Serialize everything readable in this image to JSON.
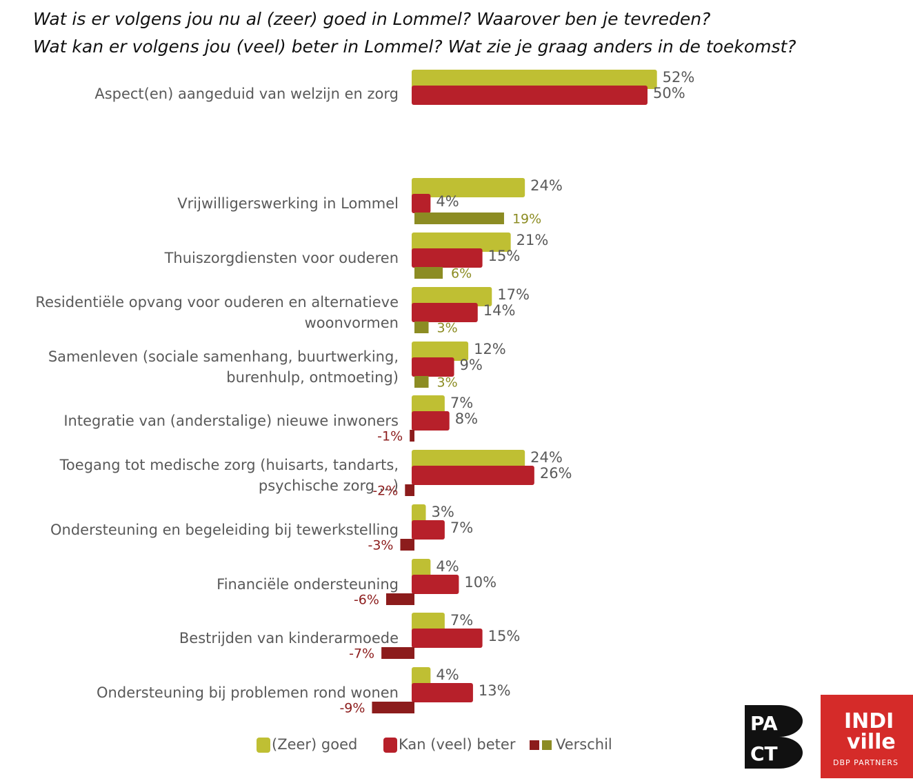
{
  "title_lines": [
    "Wat is er volgens jou nu al (zeer) goed in Lommel? Waarover ben je tevreden?",
    "Wat kan er volgens jou (veel) beter in Lommel? Wat zie je graag anders in de toekomst?"
  ],
  "chart_data": {
    "type": "bar",
    "orientation": "horizontal",
    "categories": [
      "Aspect(en) aangeduid van welzijn en zorg",
      "Vrijwilligerswerking in Lommel",
      "Thuiszorgdiensten voor ouderen",
      "Residentiële opvang voor ouderen en alternatieve woonvormen",
      "Samenleven (sociale samenhang, buurtwerking, burenhulp, ontmoeting)",
      "Integratie van (anderstalige) nieuwe inwoners",
      "Toegang tot medische zorg (huisarts, tandarts, psychische zorg ...)",
      "Ondersteuning en begeleiding bij tewerkstelling",
      "Financiële ondersteuning",
      "Bestrijden van kinderarmoede",
      "Ondersteuning bij problemen rond wonen"
    ],
    "series": [
      {
        "name": "(Zeer) goed",
        "color": "#bfbf33",
        "values": [
          52,
          24,
          21,
          17,
          12,
          7,
          24,
          3,
          4,
          7,
          4
        ]
      },
      {
        "name": "Kan (veel) beter",
        "color": "#b7202a",
        "values": [
          50,
          4,
          15,
          14,
          9,
          8,
          26,
          7,
          10,
          15,
          13
        ]
      },
      {
        "name": "Verschil",
        "values": [
          null,
          19,
          6,
          3,
          3,
          -1,
          -2,
          -3,
          -6,
          -7,
          -9
        ],
        "color_positive": "#8c8c23",
        "color_negative": "#8c1c1c"
      }
    ],
    "unit": "%",
    "legend_position": "bottom",
    "grid": false
  },
  "legend": {
    "goed": "(Zeer) goed",
    "beter": "Kan (veel) beter",
    "verschil": "Verschil",
    "colors": {
      "goed": "#bfbf33",
      "beter": "#b7202a",
      "verschil_neg": "#8c1c1c",
      "verschil_pos": "#8c8c23"
    }
  },
  "logos": {
    "pact": "PA CT",
    "indiville_name": "INDI ville",
    "indiville_sub": "DBP PARTNERS"
  }
}
